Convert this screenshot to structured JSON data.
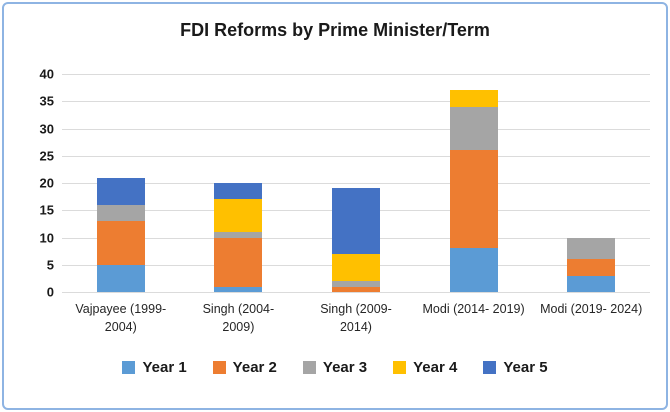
{
  "chart_data": {
    "type": "bar",
    "stacked": true,
    "title": "FDI Reforms by Prime Minister/Term",
    "categories": [
      "Vajpayee (1999- 2004)",
      "Singh (2004- 2009)",
      "Singh (2009- 2014)",
      "Modi (2014- 2019)",
      "Modi (2019- 2024)"
    ],
    "series": [
      {
        "name": "Year 1",
        "color": "#5B9BD5",
        "values": [
          5,
          1,
          0,
          8,
          3
        ]
      },
      {
        "name": "Year 2",
        "color": "#ED7D31",
        "values": [
          8,
          9,
          1,
          18,
          3
        ]
      },
      {
        "name": "Year 3",
        "color": "#A5A5A5",
        "values": [
          3,
          1,
          1,
          8,
          4
        ]
      },
      {
        "name": "Year 4",
        "color": "#FFC000",
        "values": [
          0,
          6,
          5,
          3,
          0
        ]
      },
      {
        "name": "Year 5",
        "color": "#4472C4",
        "values": [
          5,
          3,
          12,
          0,
          0
        ]
      }
    ],
    "totals": [
      21,
      20,
      19,
      37,
      10
    ],
    "y_axis": {
      "min": 0,
      "max": 40,
      "step": 5,
      "tick_labels": [
        "0",
        "5",
        "10",
        "15",
        "20",
        "25",
        "30",
        "35",
        "40"
      ]
    },
    "xlabel": "",
    "ylabel": "",
    "grid": true,
    "legend_position": "bottom"
  },
  "colors": {
    "frame_border": "#8EB4E3",
    "gridline": "#DBDBDB",
    "text": "#1a1a1a",
    "background": "#ffffff"
  }
}
